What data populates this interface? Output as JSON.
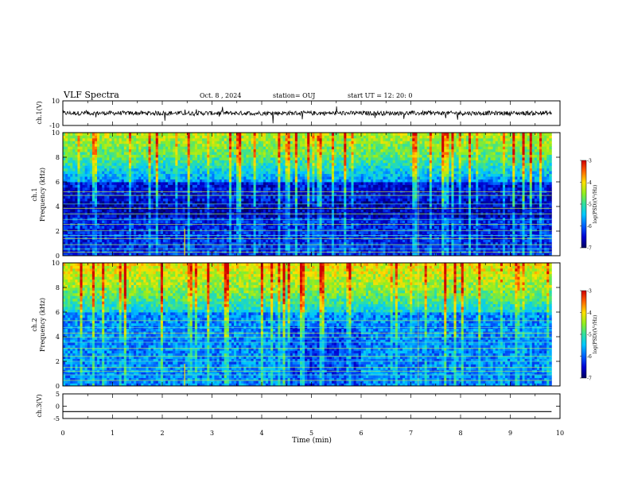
{
  "header": {
    "title": "VLF Spectra",
    "date": "Oct. 8 , 2024",
    "station": "station= OUJ",
    "start": "start  UT =   12: 20: 0"
  },
  "chart_data": {
    "type": "heatmap",
    "x_ticks": [
      "0",
      "1",
      "2",
      "3",
      "4",
      "5",
      "6",
      "7",
      "8",
      "9",
      "10"
    ],
    "xlabel": "Time (min)",
    "xlim": [
      0,
      10
    ],
    "data_end_min": 9.83,
    "panels": [
      {
        "name": "ch1-waveform",
        "type": "line",
        "ylabel": "ch.1(V)",
        "ylim": [
          -10,
          10
        ],
        "y_ticks": [
          "10",
          "-10"
        ]
      },
      {
        "name": "ch1-spectrogram",
        "type": "heatmap",
        "ylabel_top": "ch.1",
        "ylabel": "Frequency (kHz)",
        "ylim": [
          0,
          10
        ],
        "y_ticks": [
          "0",
          "2",
          "4",
          "6",
          "8",
          "10"
        ],
        "colorbar": {
          "label": "log(PSD)(V²/Hz)",
          "ticks": [
            "-3",
            "-4",
            "-5",
            "-6",
            "-7"
          ],
          "range": [
            -7,
            -3
          ]
        }
      },
      {
        "name": "ch2-spectrogram",
        "type": "heatmap",
        "ylabel_top": "ch.2",
        "ylabel": "Frequency (kHz)",
        "ylim": [
          0,
          10
        ],
        "y_ticks": [
          "0",
          "2",
          "4",
          "6",
          "8",
          "10"
        ],
        "colorbar": {
          "label": "log(PSD)(V²/Hz)",
          "ticks": [
            "-3",
            "-4",
            "-5",
            "-6",
            "-7"
          ],
          "range": [
            -7,
            -3
          ]
        }
      },
      {
        "name": "ch3-waveform",
        "type": "line",
        "ylabel": "ch.3(V)",
        "ylim": [
          -5,
          5
        ],
        "y_ticks": [
          "5",
          "0",
          "-5"
        ],
        "constant_value": -2.2
      }
    ],
    "colormap": [
      "#000060",
      "#0000d0",
      "#0060ff",
      "#00c8ff",
      "#30e0a0",
      "#90ee20",
      "#ffe000",
      "#ff6000",
      "#d00000"
    ]
  }
}
